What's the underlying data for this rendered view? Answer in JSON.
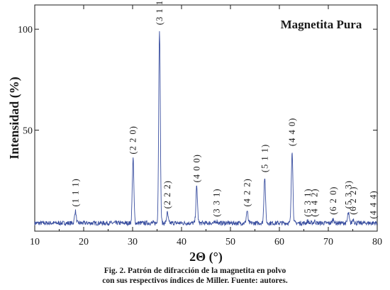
{
  "chart_data": {
    "type": "line",
    "title": "Magnetita Pura",
    "xlabel": "2Θ (°)",
    "ylabel": "Intensidad (%)",
    "xlim": [
      10,
      80
    ],
    "ylim": [
      0,
      112
    ],
    "xticks": [
      10,
      20,
      30,
      40,
      50,
      60,
      70,
      80
    ],
    "yticks": [
      50,
      100
    ],
    "grid": false,
    "series_color": "#3a4fa0",
    "baseline": 4,
    "peaks": [
      {
        "x": 18.3,
        "y": 10,
        "label": "(1 1 1)"
      },
      {
        "x": 30.1,
        "y": 36,
        "label": "(2 2 0)"
      },
      {
        "x": 35.5,
        "y": 100,
        "label": "(3 1 1)"
      },
      {
        "x": 37.1,
        "y": 9,
        "label": "(2 2 2)"
      },
      {
        "x": 43.1,
        "y": 22,
        "label": "(4 0 0)"
      },
      {
        "x": 47.2,
        "y": 5,
        "label": "(3 3 1)"
      },
      {
        "x": 53.4,
        "y": 10,
        "label": "(4 2 2)"
      },
      {
        "x": 57.0,
        "y": 27,
        "label": "(5 1 1)"
      },
      {
        "x": 62.6,
        "y": 40,
        "label": "(4 4 0)"
      },
      {
        "x": 65.8,
        "y": 5,
        "label": "(5 3 1)"
      },
      {
        "x": 67.2,
        "y": 5,
        "label": "(4 4 2)"
      },
      {
        "x": 71.0,
        "y": 6,
        "label": "(6 2 0)"
      },
      {
        "x": 74.1,
        "y": 9,
        "label": "(5 3 3)"
      },
      {
        "x": 75.1,
        "y": 6,
        "label": "(6 2 2)"
      },
      {
        "x": 79.2,
        "y": 4,
        "label": "(4 4 4)"
      }
    ]
  },
  "caption": {
    "line1": "Fig. 2. Patrón de difracción de la magnetita en polvo",
    "line2": "con sus respectivos índices de Miller. Fuente: autores."
  }
}
